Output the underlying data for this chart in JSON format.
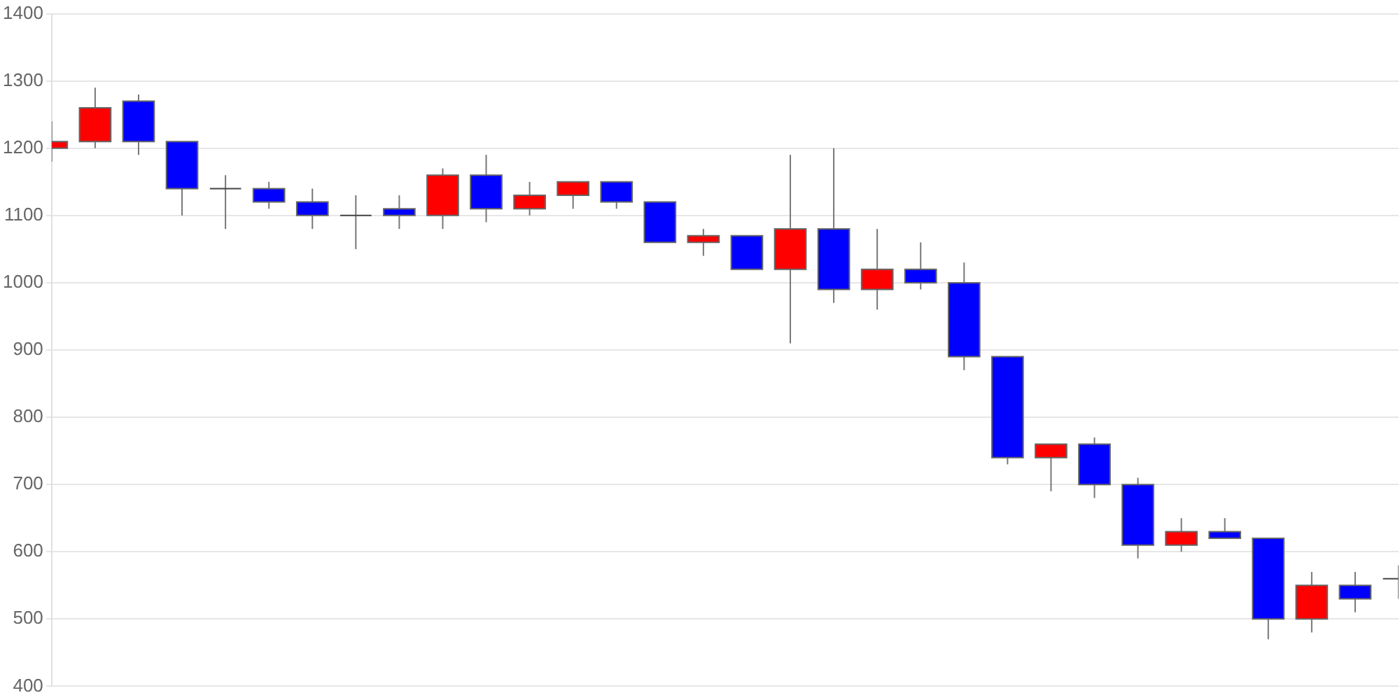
{
  "chart_data": {
    "type": "candlestick",
    "categories": [
      null,
      null,
      null,
      null,
      null,
      null,
      null,
      null,
      null,
      null,
      null,
      null,
      null,
      null,
      null,
      null,
      null,
      null,
      null,
      null,
      null,
      null,
      null,
      null,
      null,
      null,
      null,
      null,
      null,
      null,
      null,
      null
    ],
    "ohlc": [
      [
        1200,
        1240,
        1180,
        1210
      ],
      [
        1210,
        1290,
        1200,
        1260
      ],
      [
        1270,
        1280,
        1190,
        1210
      ],
      [
        1210,
        1210,
        1100,
        1140
      ],
      [
        1140,
        1160,
        1080,
        1140
      ],
      [
        1140,
        1150,
        1110,
        1120
      ],
      [
        1120,
        1140,
        1080,
        1100
      ],
      [
        1100,
        1130,
        1050,
        1100
      ],
      [
        1110,
        1130,
        1080,
        1100
      ],
      [
        1100,
        1170,
        1080,
        1160
      ],
      [
        1160,
        1190,
        1090,
        1110
      ],
      [
        1110,
        1150,
        1100,
        1130
      ],
      [
        1130,
        1150,
        1110,
        1150
      ],
      [
        1150,
        1150,
        1110,
        1120
      ],
      [
        1120,
        1120,
        1060,
        1060
      ],
      [
        1060,
        1080,
        1040,
        1070
      ],
      [
        1070,
        1070,
        1020,
        1020
      ],
      [
        1020,
        1190,
        910,
        1080
      ],
      [
        1080,
        1200,
        970,
        990
      ],
      [
        990,
        1080,
        960,
        1020
      ],
      [
        1020,
        1060,
        990,
        1000
      ],
      [
        1000,
        1030,
        870,
        890
      ],
      [
        890,
        890,
        730,
        740
      ],
      [
        740,
        760,
        690,
        760
      ],
      [
        760,
        770,
        680,
        700
      ],
      [
        700,
        710,
        590,
        610
      ],
      [
        610,
        650,
        600,
        630
      ],
      [
        630,
        650,
        620,
        620
      ],
      [
        620,
        620,
        470,
        500
      ],
      [
        500,
        570,
        480,
        550
      ],
      [
        550,
        570,
        510,
        530
      ],
      [
        560,
        580,
        530,
        560
      ]
    ],
    "colors": [
      "#ff0000",
      "#ff0000",
      "#0000ff",
      "#0000ff",
      "#444444",
      "#0000ff",
      "#0000ff",
      "#444444",
      "#0000ff",
      "#ff0000",
      "#0000ff",
      "#ff0000",
      "#ff0000",
      "#0000ff",
      "#0000ff",
      "#ff0000",
      "#0000ff",
      "#ff0000",
      "#0000ff",
      "#ff0000",
      "#0000ff",
      "#0000ff",
      "#0000ff",
      "#ff0000",
      "#0000ff",
      "#0000ff",
      "#ff0000",
      "#0000ff",
      "#0000ff",
      "#ff0000",
      "#0000ff",
      "#444444"
    ],
    "ylim": [
      400,
      1400
    ],
    "yticks": [
      400,
      500,
      600,
      700,
      800,
      900,
      1000,
      1100,
      1200,
      1300,
      1400
    ],
    "grid": "y",
    "tick_labels": "y",
    "legend": false
  }
}
